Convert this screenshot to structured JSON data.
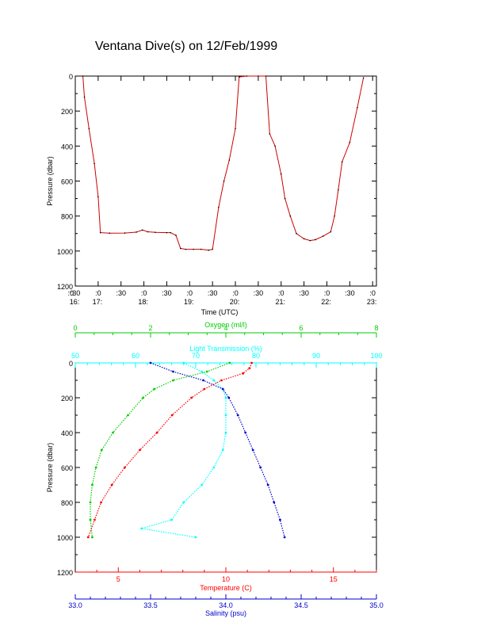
{
  "title": "Ventana Dive(s) on 12/Feb/1999",
  "colors": {
    "pressure_line": "#cc0000",
    "oxygen": "#00cc00",
    "transmission": "#00ffff",
    "temperature": "#ff0000",
    "salinity": "#0000cc",
    "axis": "#000000"
  },
  "chart_data": [
    {
      "type": "line",
      "name": "pressure-time",
      "ylabel": "Pressure (dbar)",
      "xlabel": "Time (UTC)",
      "ylim": [
        1200,
        0
      ],
      "y_inverted": true,
      "y_ticks": [
        "0",
        "200",
        "400",
        "600",
        "800",
        "1000",
        "1200"
      ],
      "x_time_range": [
        "16:30",
        "23:05"
      ],
      "x_ticks": [
        {
          "t": "16:30",
          "minute": ":30",
          "hour": "16:"
        },
        {
          "t": "17:00",
          "minute": ":0",
          "hour": "17:"
        },
        {
          "t": "17:30",
          "minute": ":30",
          "hour": ""
        },
        {
          "t": "18:00",
          "minute": ":0",
          "hour": "18:"
        },
        {
          "t": "18:30",
          "minute": ":30",
          "hour": ""
        },
        {
          "t": "19:00",
          "minute": ":0",
          "hour": "19:"
        },
        {
          "t": "19:30",
          "minute": ":30",
          "hour": ""
        },
        {
          "t": "20:00",
          "minute": ":0",
          "hour": "20:"
        },
        {
          "t": "20:30",
          "minute": ":30",
          "hour": ""
        },
        {
          "t": "21:00",
          "minute": ":0",
          "hour": "21:"
        },
        {
          "t": "21:30",
          "minute": ":30",
          "hour": ""
        },
        {
          "t": "22:00",
          "minute": ":0",
          "hour": "22:"
        },
        {
          "t": "22:30",
          "minute": ":30",
          "hour": ""
        },
        {
          "t": "23:00",
          "minute": ":0",
          "hour": "23:"
        }
      ],
      "first_tick_prefix": ":0",
      "x": [
        "16:40",
        "16:42",
        "16:48",
        "16:55",
        "17:00",
        "17:03",
        "17:15",
        "17:35",
        "17:50",
        "17:58",
        "18:05",
        "18:15",
        "18:30",
        "18:35",
        "18:42",
        "18:48",
        "18:55",
        "19:05",
        "19:15",
        "19:25",
        "19:30",
        "19:38",
        "19:45",
        "19:52",
        "20:00",
        "20:05",
        "20:15",
        "20:30",
        "20:40",
        "20:45",
        "20:52",
        "21:00",
        "21:05",
        "21:12",
        "21:20",
        "21:30",
        "21:38",
        "21:45",
        "21:55",
        "22:05",
        "22:10",
        "22:15",
        "22:20",
        "22:30",
        "22:40",
        "22:48"
      ],
      "y": [
        0,
        120,
        300,
        500,
        690,
        895,
        898,
        897,
        892,
        880,
        890,
        893,
        895,
        895,
        910,
        985,
        990,
        990,
        990,
        995,
        990,
        750,
        600,
        480,
        300,
        5,
        0,
        0,
        0,
        330,
        400,
        560,
        700,
        800,
        900,
        930,
        940,
        935,
        915,
        890,
        800,
        650,
        490,
        380,
        180,
        10
      ]
    },
    {
      "type": "line",
      "name": "profiles",
      "ylabel": "Pressure (dbar)",
      "ylim": [
        1200,
        0
      ],
      "y_inverted": true,
      "y_ticks": [
        "0",
        "200",
        "400",
        "600",
        "800",
        "1000",
        "1200"
      ],
      "axes": {
        "oxygen": {
          "label": "Oxygen (ml/l)",
          "range": [
            0,
            8
          ],
          "ticks": [
            "0",
            "2",
            "4",
            "6",
            "8"
          ]
        },
        "transmission": {
          "label": "Light Transmission (%)",
          "range": [
            50,
            100
          ],
          "ticks": [
            "50",
            "60",
            "70",
            "80",
            "90",
            "100"
          ]
        },
        "temperature": {
          "label": "Temperature (C)",
          "range": [
            3.0,
            17.0
          ],
          "ticks": [
            "5",
            "10",
            "15"
          ]
        },
        "salinity": {
          "label": "Salinity (psu)",
          "range": [
            33.0,
            35.0
          ],
          "ticks": [
            "33.0",
            "33.5",
            "34.0",
            "34.5",
            "35.0"
          ]
        }
      },
      "series": [
        {
          "key": "oxygen",
          "pressure": [
            0,
            50,
            100,
            150,
            200,
            300,
            400,
            500,
            600,
            700,
            800,
            900,
            1000
          ],
          "values": [
            4.1,
            3.5,
            2.6,
            2.1,
            1.8,
            1.4,
            1.0,
            0.7,
            0.55,
            0.45,
            0.4,
            0.4,
            0.45
          ]
        },
        {
          "key": "transmission",
          "pressure": [
            0,
            50,
            100,
            150,
            200,
            300,
            400,
            500,
            600,
            700,
            800,
            900,
            950,
            1000
          ],
          "values": [
            68,
            71,
            73,
            74.5,
            75,
            75,
            75,
            74.5,
            73,
            71,
            68,
            66,
            61,
            70
          ]
        },
        {
          "key": "temperature",
          "pressure": [
            0,
            30,
            60,
            100,
            150,
            200,
            300,
            400,
            500,
            600,
            700,
            800,
            900,
            1000
          ],
          "values": [
            11.2,
            11.1,
            10.8,
            9.8,
            9.0,
            8.4,
            7.5,
            6.8,
            6.0,
            5.3,
            4.7,
            4.2,
            3.9,
            3.6
          ]
        },
        {
          "key": "salinity",
          "pressure": [
            0,
            50,
            100,
            150,
            200,
            300,
            400,
            500,
            600,
            700,
            800,
            900,
            1000
          ],
          "values": [
            33.5,
            33.65,
            33.85,
            33.98,
            34.02,
            34.08,
            34.13,
            34.18,
            34.23,
            34.28,
            34.32,
            34.36,
            34.39
          ]
        }
      ]
    }
  ]
}
